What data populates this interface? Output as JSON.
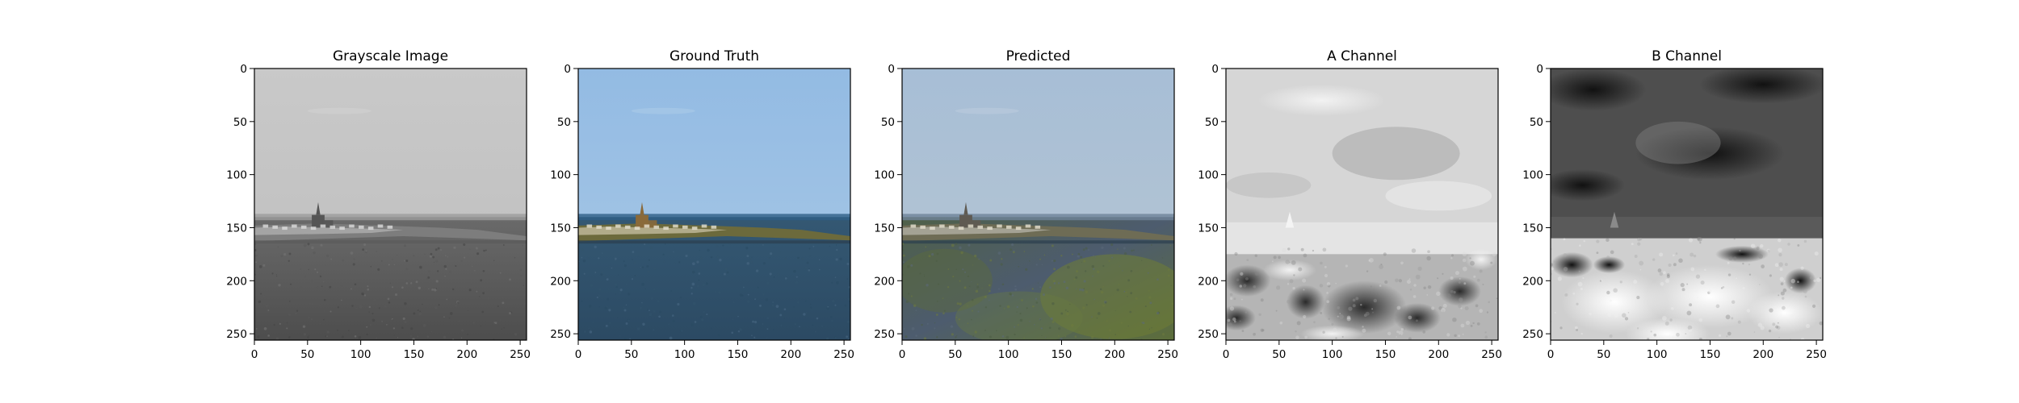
{
  "chart_data": [
    {
      "type": "heatmap",
      "title": "Grayscale Image",
      "xlabel": "",
      "ylabel": "",
      "xlim": [
        0,
        256
      ],
      "ylim": [
        256,
        0
      ],
      "xticks": [
        0,
        50,
        100,
        150,
        200,
        250
      ],
      "yticks": [
        0,
        50,
        100,
        150,
        200,
        250
      ],
      "content": "grayscale"
    },
    {
      "type": "heatmap",
      "title": "Ground Truth",
      "xlabel": "",
      "ylabel": "",
      "xlim": [
        0,
        256
      ],
      "ylim": [
        256,
        0
      ],
      "xticks": [
        0,
        50,
        100,
        150,
        200,
        250
      ],
      "yticks": [
        0,
        50,
        100,
        150,
        200,
        250
      ],
      "content": "truth"
    },
    {
      "type": "heatmap",
      "title": "Predicted",
      "xlabel": "",
      "ylabel": "",
      "xlim": [
        0,
        256
      ],
      "ylim": [
        256,
        0
      ],
      "xticks": [
        0,
        50,
        100,
        150,
        200,
        250
      ],
      "yticks": [
        0,
        50,
        100,
        150,
        200,
        250
      ],
      "content": "predicted"
    },
    {
      "type": "heatmap",
      "title": "A Channel",
      "xlabel": "",
      "ylabel": "",
      "xlim": [
        0,
        256
      ],
      "ylim": [
        256,
        0
      ],
      "xticks": [
        0,
        50,
        100,
        150,
        200,
        250
      ],
      "yticks": [
        0,
        50,
        100,
        150,
        200,
        250
      ],
      "content": "achannel"
    },
    {
      "type": "heatmap",
      "title": "B Channel",
      "xlabel": "",
      "ylabel": "",
      "xlim": [
        0,
        256
      ],
      "ylim": [
        256,
        0
      ],
      "xticks": [
        0,
        50,
        100,
        150,
        200,
        250
      ],
      "yticks": [
        0,
        50,
        100,
        150,
        200,
        250
      ],
      "content": "bchannel"
    }
  ],
  "colors": {
    "sky_truth": "#9cc2e6",
    "sea_truth": "#3a5d79",
    "sky_pred": "#a9bfd6",
    "sea_pred": "#5a6a4a",
    "land": "#8f8a5a"
  }
}
